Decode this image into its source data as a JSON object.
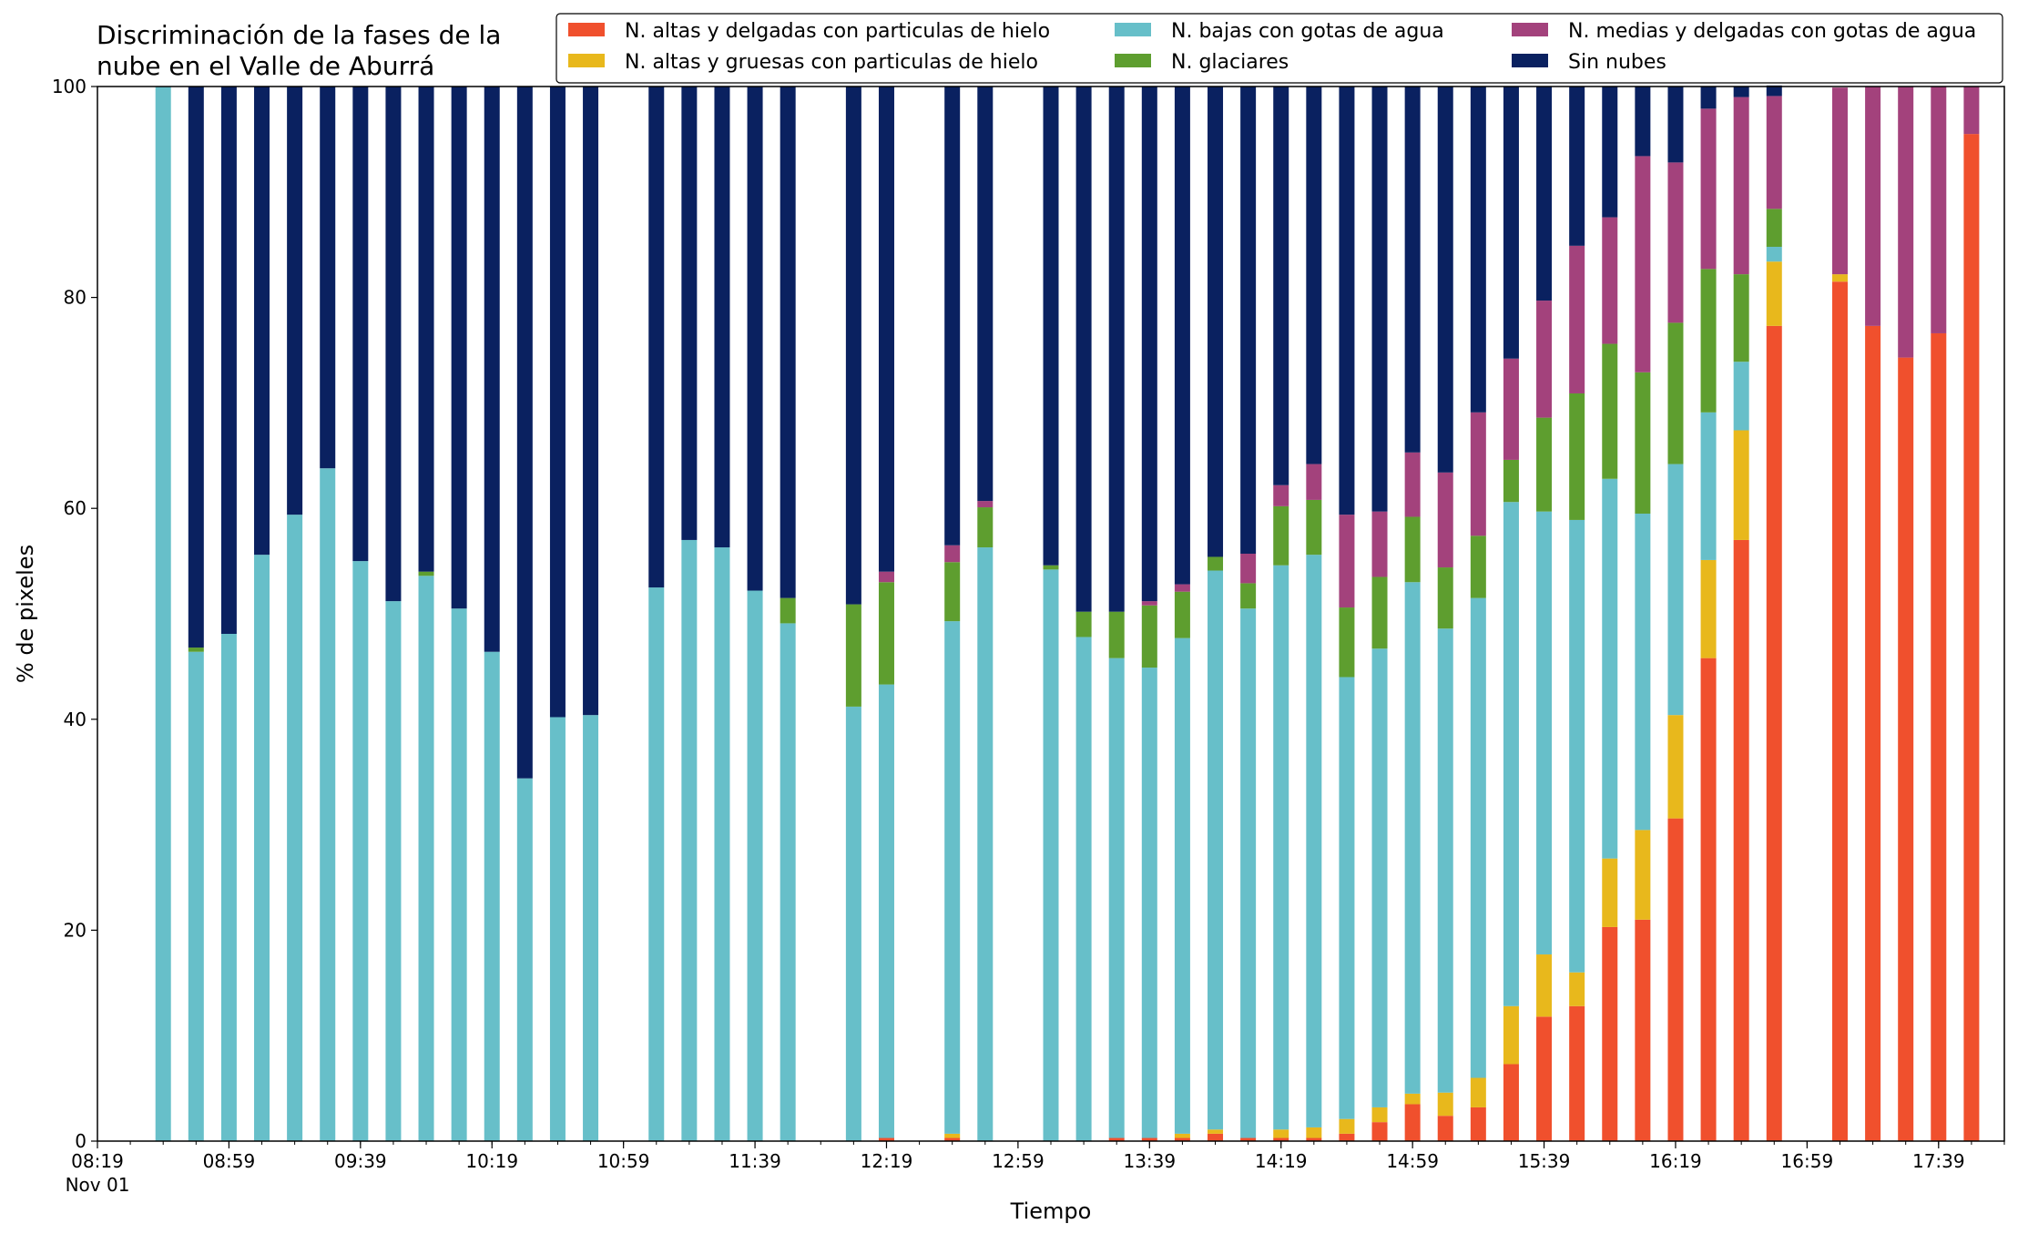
{
  "chart_data": {
    "type": "bar",
    "stacked": true,
    "title_lines": [
      "Discriminación de la fases de la",
      "nube en el Valle de Aburrá"
    ],
    "xlabel": "Tiempo",
    "ylabel": "% de pixeles",
    "ylim": [
      0,
      100
    ],
    "yticks": [
      0,
      20,
      40,
      60,
      80,
      100
    ],
    "x_start_time": "08:19",
    "x_end_time": "17:59",
    "xtick_labels": [
      "08:19",
      "08:59",
      "09:39",
      "10:19",
      "10:59",
      "11:39",
      "12:19",
      "12:59",
      "13:39",
      "14:19",
      "14:59",
      "15:39",
      "16:19",
      "16:59",
      "17:39"
    ],
    "xtick_sublabel": "Nov 01",
    "legend_position": "top-right",
    "times": [
      "08:39",
      "08:49",
      "08:59",
      "09:09",
      "09:19",
      "09:29",
      "09:39",
      "09:49",
      "09:59",
      "10:09",
      "10:19",
      "10:29",
      "10:39",
      "10:49",
      "11:09",
      "11:19",
      "11:29",
      "11:39",
      "11:49",
      "12:09",
      "12:19",
      "12:39",
      "12:49",
      "13:09",
      "13:19",
      "13:29",
      "13:39",
      "13:49",
      "13:59",
      "14:09",
      "14:19",
      "14:29",
      "14:39",
      "14:49",
      "14:59",
      "15:09",
      "15:19",
      "15:29",
      "15:39",
      "15:49",
      "15:59",
      "16:09",
      "16:19",
      "16:29",
      "16:39",
      "16:49",
      "17:09",
      "17:19",
      "17:29",
      "17:39",
      "17:49"
    ],
    "series": [
      {
        "name": "N. altas y delgadas con particulas de hielo",
        "color": "#f0502d",
        "values": [
          0,
          0,
          0,
          0,
          0,
          0,
          0,
          0,
          0,
          0,
          0,
          0,
          0,
          0,
          0,
          0,
          0,
          0,
          0,
          0,
          0.3,
          0.3,
          0,
          0,
          0,
          0.3,
          0.3,
          0.3,
          0.7,
          0.3,
          0.3,
          0.3,
          0.7,
          1.8,
          3.5,
          2.4,
          3.2,
          7.3,
          11.8,
          12.8,
          20.3,
          21.0,
          30.6,
          45.8,
          57.0,
          77.3,
          81.5,
          77.3,
          74.3,
          76.6,
          95.5
        ]
      },
      {
        "name": "N. altas y gruesas con particulas de hielo",
        "color": "#e8b81c",
        "values": [
          0,
          0,
          0,
          0,
          0,
          0,
          0,
          0,
          0,
          0,
          0,
          0,
          0,
          0,
          0,
          0,
          0,
          0,
          0,
          0,
          0,
          0.4,
          0,
          0,
          0,
          0,
          0,
          0.4,
          0.4,
          0,
          0.8,
          1.0,
          1.4,
          1.4,
          1.0,
          2.2,
          2.8,
          5.5,
          5.9,
          3.2,
          6.5,
          8.5,
          9.8,
          9.3,
          10.4,
          6.1,
          0.7,
          0,
          0,
          0,
          0
        ]
      },
      {
        "name": "N. bajas con gotas de agua",
        "color": "#67bfc9",
        "values": [
          100,
          46.4,
          48.1,
          55.6,
          59.4,
          63.8,
          55.0,
          51.2,
          53.6,
          50.5,
          46.4,
          34.4,
          40.2,
          40.4,
          52.5,
          57.0,
          56.3,
          52.2,
          49.1,
          41.2,
          43.0,
          48.6,
          56.3,
          54.2,
          47.8,
          45.5,
          44.6,
          47.0,
          53.0,
          50.2,
          53.5,
          54.3,
          41.9,
          43.5,
          48.5,
          44.0,
          45.5,
          47.8,
          42.0,
          42.9,
          36.0,
          30.0,
          23.8,
          14.0,
          6.5,
          1.4,
          0,
          0,
          0,
          0,
          0
        ]
      },
      {
        "name": "N. glaciares",
        "color": "#5e9e2f",
        "values": [
          0,
          0.4,
          0,
          0,
          0,
          0,
          0,
          0,
          0.4,
          0,
          0,
          0,
          0,
          0,
          0,
          0,
          0,
          0,
          2.4,
          9.7,
          9.7,
          5.6,
          3.8,
          0.4,
          2.4,
          4.4,
          5.9,
          4.4,
          1.3,
          2.4,
          5.6,
          5.2,
          6.6,
          6.8,
          6.2,
          5.8,
          5.9,
          4.0,
          8.9,
          12.0,
          12.8,
          13.4,
          13.4,
          13.6,
          8.3,
          3.6,
          0,
          0,
          0,
          0,
          0
        ]
      },
      {
        "name": "N. medias y delgadas con gotas de agua",
        "color": "#a3427c",
        "values": [
          0,
          0,
          0,
          0,
          0,
          0,
          0,
          0,
          0,
          0,
          0,
          0,
          0,
          0,
          0,
          0,
          0,
          0,
          0,
          0,
          1.0,
          1.6,
          0.6,
          0,
          0,
          0,
          0.4,
          0.7,
          0,
          2.8,
          2.0,
          3.4,
          8.8,
          6.2,
          6.1,
          9.0,
          11.7,
          9.6,
          11.1,
          14.0,
          12.0,
          20.5,
          15.2,
          15.2,
          16.8,
          10.7,
          17.7,
          22.7,
          25.7,
          23.4,
          4.5
        ]
      },
      {
        "name": "Sin nubes",
        "color": "#0a2160",
        "values": [
          0,
          53.2,
          51.9,
          44.4,
          40.6,
          36.2,
          45.0,
          48.8,
          46.0,
          49.5,
          53.6,
          65.6,
          59.8,
          59.6,
          47.5,
          43.0,
          43.7,
          47.8,
          48.5,
          49.1,
          46.0,
          43.5,
          39.3,
          45.4,
          49.8,
          49.8,
          48.8,
          47.2,
          44.6,
          44.3,
          37.8,
          35.8,
          40.6,
          40.3,
          34.7,
          36.6,
          30.9,
          25.8,
          20.3,
          15.1,
          12.4,
          6.6,
          7.2,
          2.1,
          1.0,
          1.0,
          0,
          0,
          0,
          0,
          0
        ]
      }
    ]
  }
}
